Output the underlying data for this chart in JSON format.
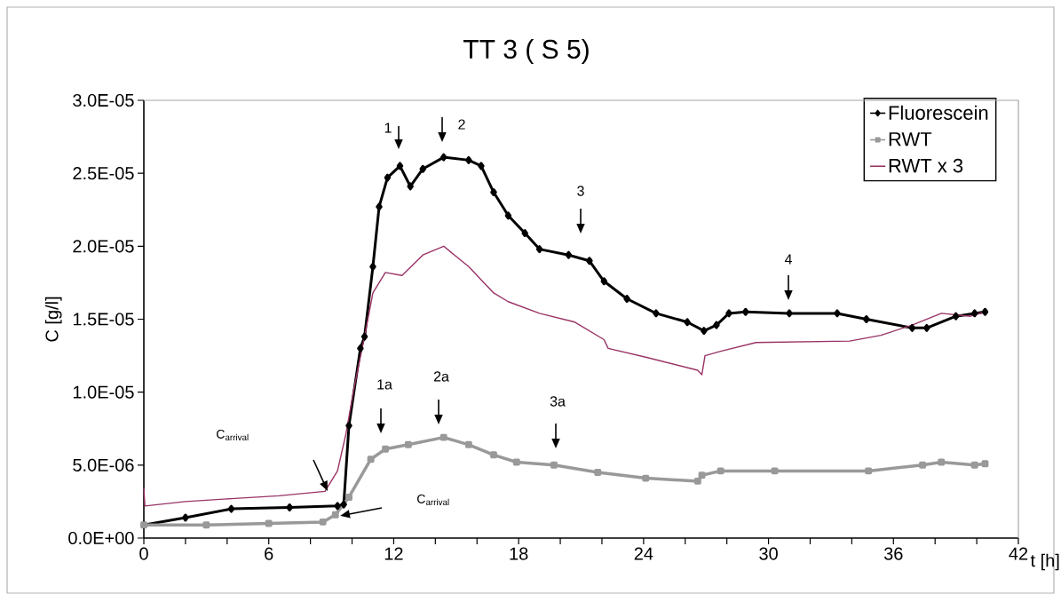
{
  "chart_data": {
    "type": "line",
    "title": "TT 3 ( S 5)",
    "xlabel": "t [h]",
    "ylabel": "C [g/l]",
    "xlim": [
      0,
      42
    ],
    "ylim": [
      0,
      3e-05
    ],
    "xticks": [
      0,
      {
        "value": 2,
        "label": null
      },
      {
        "value": 4,
        "label": null
      },
      6,
      {
        "value": 8,
        "label": null
      },
      {
        "value": 10,
        "label": null
      },
      12,
      {
        "value": 14,
        "label": null
      },
      {
        "value": 16,
        "label": null
      },
      18,
      {
        "value": 20,
        "label": null
      },
      {
        "value": 22,
        "label": null
      },
      24,
      {
        "value": 26,
        "label": null
      },
      {
        "value": 28,
        "label": null
      },
      30,
      {
        "value": 32,
        "label": null
      },
      {
        "value": 34,
        "label": null
      },
      36,
      {
        "value": 38,
        "label": null
      },
      {
        "value": 40,
        "label": null
      },
      42
    ],
    "yticks": [
      {
        "value": 0,
        "label": "0.0E+00"
      },
      {
        "value": 5e-06,
        "label": "5.0E-06"
      },
      {
        "value": 1e-05,
        "label": "1.0E-05"
      },
      {
        "value": 1.5e-05,
        "label": "1.5E-05"
      },
      {
        "value": 2e-05,
        "label": "2.0E-05"
      },
      {
        "value": 2.5e-05,
        "label": "2.5E-05"
      },
      {
        "value": 3e-05,
        "label": "3.0E-05"
      }
    ],
    "grid": false,
    "legend": "top right",
    "series": [
      {
        "name": "Fluorescein",
        "color": "#000000",
        "marker": "diamond",
        "x": [
          0,
          2,
          4.2,
          7,
          9.3,
          9.6,
          9.85,
          10.4,
          10.6,
          11.0,
          11.3,
          11.7,
          12.3,
          12.8,
          13.4,
          14.4,
          15.6,
          16.2,
          16.8,
          17.5,
          18.3,
          19.0,
          20.4,
          21.4,
          22.1,
          23.2,
          24.6,
          26.1,
          26.9,
          27.5,
          28.1,
          28.9,
          31,
          33.3,
          34.7,
          36.9,
          37.6,
          39.0,
          39.9,
          40.4
        ],
        "values": [
          9e-07,
          1.4e-06,
          2e-06,
          2.1e-06,
          2.2e-06,
          2.3e-06,
          7.7e-06,
          1.3e-05,
          1.38e-05,
          1.86e-05,
          2.27e-05,
          2.47e-05,
          2.55e-05,
          2.41e-05,
          2.53e-05,
          2.61e-05,
          2.59e-05,
          2.55e-05,
          2.37e-05,
          2.21e-05,
          2.09e-05,
          1.98e-05,
          1.94e-05,
          1.9e-05,
          1.76e-05,
          1.64e-05,
          1.54e-05,
          1.48e-05,
          1.42e-05,
          1.46e-05,
          1.54e-05,
          1.55e-05,
          1.54e-05,
          1.54e-05,
          1.5e-05,
          1.44e-05,
          1.44e-05,
          1.52e-05,
          1.54e-05,
          1.55e-05
        ]
      },
      {
        "name": "RWT",
        "color": "#999999",
        "marker": "square",
        "x": [
          0,
          3,
          6,
          8.6,
          9.2,
          9.85,
          10.9,
          11.6,
          12.7,
          14.4,
          15.6,
          16.8,
          17.9,
          19.7,
          21.8,
          24.1,
          26.6,
          26.8,
          27.7,
          30.3,
          34.8,
          37.4,
          38.3,
          39.9,
          40.4
        ],
        "values": [
          9e-07,
          9e-07,
          1e-06,
          1.1e-06,
          1.6e-06,
          2.8e-06,
          5.4e-06,
          6.1e-06,
          6.4e-06,
          6.9e-06,
          6.4e-06,
          5.7e-06,
          5.2e-06,
          5e-06,
          4.5e-06,
          4.1e-06,
          3.9e-06,
          4.3e-06,
          4.6e-06,
          4.6e-06,
          4.6e-06,
          5e-06,
          5.2e-06,
          5e-06,
          5.1e-06
        ]
      },
      {
        "name": "RWT x 3",
        "color": "#993366",
        "marker": "none",
        "x": [
          0,
          0.05,
          2,
          4.2,
          6.5,
          8.7,
          9.3,
          9.7,
          10.1,
          10.6,
          11.0,
          11.6,
          12.4,
          13.4,
          14.4,
          15.6,
          16.8,
          17.5,
          19.0,
          20.7,
          22.1,
          22.3,
          24.1,
          26.6,
          26.8,
          26.95,
          27.7,
          29.4,
          33.9,
          35.4,
          36.9,
          38.3,
          39.7,
          40.4
        ],
        "values": [
          3.4e-06,
          2.2e-06,
          2.5e-06,
          2.7e-06,
          2.9e-06,
          3.2e-06,
          4.6e-06,
          7.1e-06,
          1.03e-05,
          1.38e-05,
          1.68e-05,
          1.82e-05,
          1.8e-05,
          1.94e-05,
          2e-05,
          1.86e-05,
          1.68e-05,
          1.62e-05,
          1.54e-05,
          1.48e-05,
          1.36e-05,
          1.3e-05,
          1.24e-05,
          1.15e-05,
          1.12e-05,
          1.25e-05,
          1.28e-05,
          1.34e-05,
          1.35e-05,
          1.39e-05,
          1.46e-05,
          1.54e-05,
          1.52e-05,
          1.55e-05
        ]
      }
    ],
    "annotations": [
      "1",
      "2",
      "3",
      "4",
      "1a",
      "2a",
      "3a",
      "C$_{arrival}$",
      "C$_{arrival}$"
    ]
  }
}
